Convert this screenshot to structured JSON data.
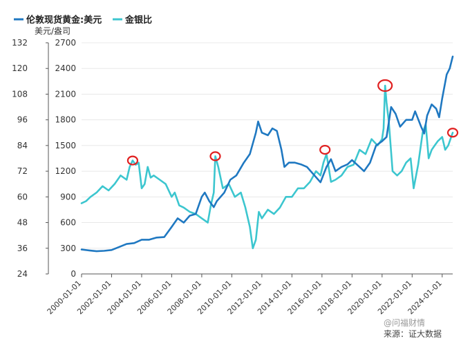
{
  "chart_data": {
    "type": "line",
    "legend": {
      "placement": "top-left",
      "entries": [
        {
          "name": "伦敦现货黄金:美元",
          "color": "#1f78c1",
          "axis": "right"
        },
        {
          "name": "金银比",
          "color": "#3cc6cf",
          "axis": "left"
        }
      ]
    },
    "unit_label": "美元/盎司",
    "left_axis": {
      "ticks": [
        24,
        36,
        48,
        60,
        72,
        84,
        96,
        108,
        120,
        132
      ],
      "range": [
        24,
        132
      ]
    },
    "right_axis": {
      "ticks": [
        0,
        300,
        600,
        900,
        1200,
        1500,
        1800,
        2100,
        2400,
        2700
      ],
      "range": [
        0,
        2700
      ]
    },
    "x_axis": {
      "ticks": [
        "2000-01-01",
        "2002-01-01",
        "2004-01-01",
        "2006-01-01",
        "2008-01-01",
        "2010-01-01",
        "2012-01-01",
        "2014-01-01",
        "2016-01-01",
        "2018-01-01",
        "2020-01-01",
        "2022-01-01",
        "2024-01-01"
      ],
      "range": [
        2000.0,
        2024.7
      ]
    },
    "grid": "horizontal",
    "series": [
      {
        "name": "伦敦现货黄金:美元",
        "axis": "right",
        "x": [
          2000.0,
          2000.5,
          2001.0,
          2001.5,
          2002.0,
          2002.5,
          2003.0,
          2003.5,
          2004.0,
          2004.5,
          2005.0,
          2005.5,
          2006.0,
          2006.4,
          2006.8,
          2007.2,
          2007.6,
          2008.0,
          2008.2,
          2008.5,
          2008.8,
          2009.0,
          2009.5,
          2009.9,
          2010.3,
          2010.8,
          2011.2,
          2011.6,
          2011.75,
          2012.0,
          2012.4,
          2012.7,
          2013.0,
          2013.3,
          2013.5,
          2013.8,
          2014.2,
          2014.6,
          2015.0,
          2015.5,
          2015.9,
          2016.3,
          2016.6,
          2016.9,
          2017.3,
          2017.7,
          2018.0,
          2018.5,
          2018.8,
          2019.2,
          2019.6,
          2020.0,
          2020.3,
          2020.6,
          2020.9,
          2021.2,
          2021.6,
          2022.0,
          2022.2,
          2022.6,
          2022.8,
          2023.0,
          2023.3,
          2023.6,
          2023.8,
          2024.0,
          2024.3,
          2024.5,
          2024.7
        ],
        "values": [
          285,
          275,
          265,
          270,
          280,
          315,
          350,
          360,
          400,
          400,
          425,
          430,
          550,
          650,
          600,
          680,
          700,
          900,
          950,
          850,
          780,
          850,
          950,
          1100,
          1150,
          1300,
          1400,
          1650,
          1780,
          1650,
          1620,
          1700,
          1670,
          1450,
          1250,
          1300,
          1300,
          1280,
          1250,
          1150,
          1070,
          1250,
          1340,
          1200,
          1250,
          1280,
          1330,
          1250,
          1200,
          1300,
          1500,
          1550,
          1600,
          1950,
          1870,
          1720,
          1800,
          1800,
          1900,
          1720,
          1640,
          1850,
          1980,
          1930,
          1830,
          2050,
          2330,
          2400,
          2540
        ]
      },
      {
        "name": "金银比",
        "axis": "left",
        "x": [
          2000.0,
          2000.3,
          2000.6,
          2001.0,
          2001.4,
          2001.8,
          2002.2,
          2002.6,
          2003.0,
          2003.2,
          2003.4,
          2003.6,
          2003.8,
          2004.0,
          2004.2,
          2004.4,
          2004.6,
          2004.8,
          2005.2,
          2005.6,
          2006.0,
          2006.2,
          2006.5,
          2006.8,
          2007.2,
          2007.6,
          2008.0,
          2008.4,
          2008.6,
          2008.8,
          2008.9,
          2009.1,
          2009.4,
          2009.8,
          2010.2,
          2010.6,
          2010.9,
          2011.2,
          2011.4,
          2011.6,
          2011.8,
          2012.0,
          2012.4,
          2012.8,
          2013.2,
          2013.6,
          2014.0,
          2014.4,
          2014.8,
          2015.2,
          2015.6,
          2015.9,
          2016.1,
          2016.3,
          2016.6,
          2016.9,
          2017.3,
          2017.7,
          2018.1,
          2018.5,
          2018.9,
          2019.3,
          2019.7,
          2020.0,
          2020.1,
          2020.2,
          2020.3,
          2020.45,
          2020.7,
          2021.0,
          2021.3,
          2021.6,
          2021.9,
          2022.1,
          2022.4,
          2022.7,
          2022.9,
          2023.1,
          2023.3,
          2023.5,
          2023.7,
          2024.0,
          2024.2,
          2024.4,
          2024.6,
          2024.7
        ],
        "values": [
          57,
          58,
          60,
          62,
          65,
          63,
          66,
          70,
          68,
          74,
          77,
          75,
          76,
          64,
          66,
          74,
          69,
          70,
          68,
          66,
          60,
          62,
          56,
          55,
          53,
          52,
          50,
          48,
          56,
          62,
          79,
          74,
          64,
          66,
          60,
          62,
          55,
          46,
          36,
          40,
          53,
          50,
          54,
          52,
          55,
          60,
          60,
          64,
          64,
          67,
          72,
          70,
          76,
          80,
          67,
          68,
          70,
          74,
          75,
          82,
          80,
          87,
          84,
          87,
          92,
          112,
          104,
          95,
          72,
          70,
          72,
          76,
          78,
          64,
          75,
          90,
          94,
          78,
          82,
          84,
          86,
          88,
          82,
          84,
          88,
          90
        ]
      }
    ],
    "annotations": [
      {
        "type": "circle",
        "color": "#e02020",
        "axis": "left",
        "x": 2003.4,
        "y": 77
      },
      {
        "type": "circle",
        "color": "#e02020",
        "axis": "left",
        "x": 2008.9,
        "y": 79
      },
      {
        "type": "circle",
        "color": "#e02020",
        "axis": "left",
        "x": 2016.2,
        "y": 82
      },
      {
        "type": "circle",
        "color": "#e02020",
        "axis": "left",
        "x": 2020.2,
        "y": 112
      },
      {
        "type": "circle",
        "color": "#e02020",
        "axis": "left",
        "x": 2024.7,
        "y": 90
      }
    ]
  },
  "watermark": {
    "line1": "@问福财情",
    "line2": "来源：证大数据"
  }
}
